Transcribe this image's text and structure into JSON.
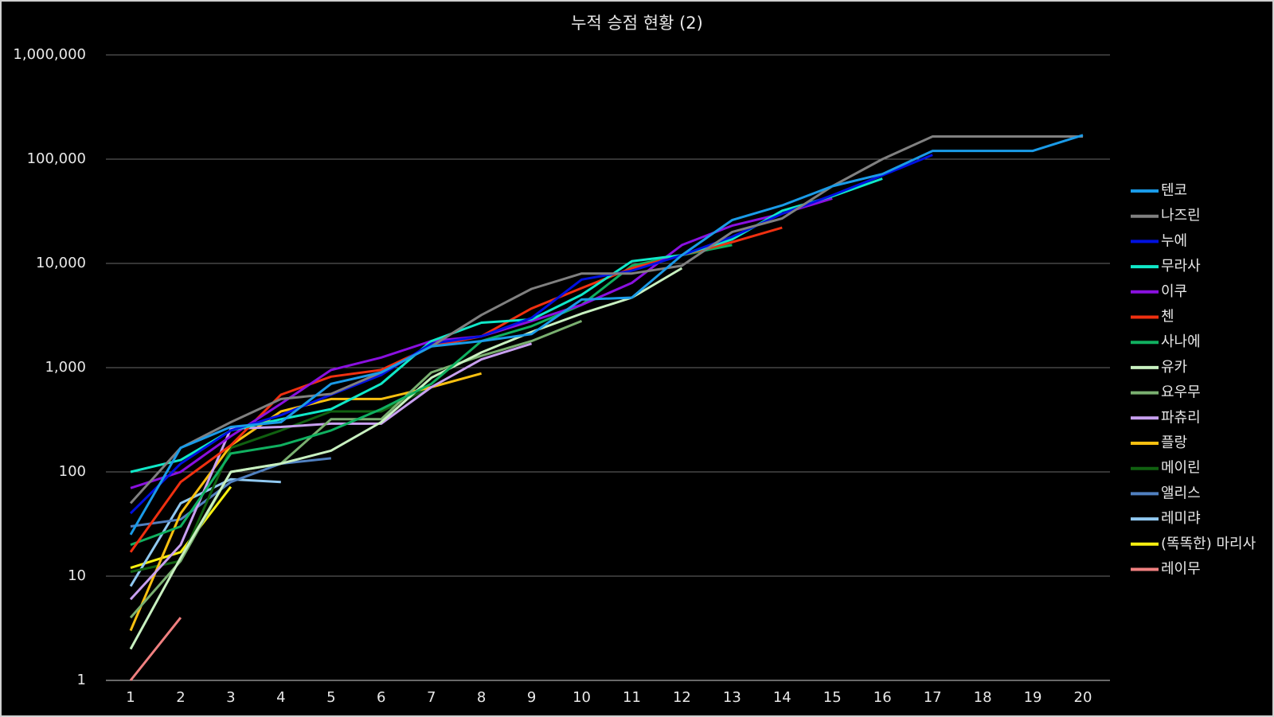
{
  "chart_data": {
    "type": "line",
    "title": "누적 승점 현황 (2)",
    "log_scale": true,
    "grid": true,
    "legend": "right",
    "categories": [
      1,
      2,
      3,
      4,
      5,
      6,
      7,
      8,
      9,
      10,
      11,
      12,
      13,
      14,
      15,
      16,
      17,
      18,
      19,
      20
    ],
    "ylim": [
      1,
      1000000
    ],
    "yticks": [
      1,
      10,
      100,
      {
        "value": 1000,
        "label": "1,000"
      },
      {
        "value": 10000,
        "label": "10,000"
      },
      {
        "value": 100000,
        "label": "100,000"
      },
      {
        "value": 1000000,
        "label": "1,000,000"
      }
    ],
    "series": [
      {
        "name": "텐코",
        "color": "#1a9be8",
        "values": [
          25,
          170,
          270,
          300,
          700,
          900,
          1600,
          1800,
          2100,
          4500,
          4700,
          12000,
          26000,
          36000,
          55000,
          72000,
          120000,
          120000,
          120000,
          170000
        ]
      },
      {
        "name": "나즈린",
        "color": "#808080",
        "values": [
          50,
          170,
          300,
          500,
          560,
          900,
          1600,
          3200,
          5700,
          8000,
          8000,
          9500,
          20000,
          27000,
          55000,
          100000,
          165000,
          165000,
          165000,
          165000
        ]
      },
      {
        "name": "누에",
        "color": "#0010e0",
        "values": [
          40,
          120,
          250,
          350,
          550,
          850,
          1700,
          2000,
          3000,
          7000,
          8500,
          12000,
          18000,
          30000,
          45000,
          70000,
          110000,
          null,
          null,
          null
        ]
      },
      {
        "name": "무라사",
        "color": "#10e8c8",
        "values": [
          100,
          130,
          250,
          320,
          400,
          700,
          1800,
          2700,
          2900,
          5000,
          10500,
          12000,
          17000,
          32000,
          44000,
          65000,
          null,
          null,
          null,
          null
        ]
      },
      {
        "name": "이쿠",
        "color": "#8a10e0",
        "values": [
          70,
          100,
          220,
          450,
          950,
          1250,
          1800,
          2000,
          2800,
          4000,
          6500,
          15000,
          23000,
          30000,
          42000,
          null,
          null,
          null,
          null,
          null
        ]
      },
      {
        "name": "첸",
        "color": "#f03010",
        "values": [
          17,
          80,
          180,
          550,
          820,
          950,
          1600,
          2000,
          3700,
          5800,
          9000,
          12000,
          16000,
          22000,
          null,
          null,
          null,
          null,
          null,
          null
        ]
      },
      {
        "name": "사나에",
        "color": "#10b060",
        "values": [
          20,
          30,
          150,
          180,
          250,
          400,
          700,
          1800,
          2500,
          4000,
          9500,
          12000,
          15000,
          null,
          null,
          null,
          null,
          null,
          null,
          null
        ]
      },
      {
        "name": "유카",
        "color": "#c8f0c0",
        "values": [
          2,
          15,
          100,
          120,
          160,
          300,
          800,
          1400,
          2200,
          3300,
          4700,
          9000,
          null,
          null,
          null,
          null,
          null,
          null,
          null,
          null
        ]
      },
      {
        "name": "요우무",
        "color": "#7ab070",
        "values": [
          4,
          14,
          100,
          120,
          320,
          320,
          900,
          1300,
          1800,
          2800,
          null,
          null,
          null,
          null,
          null,
          null,
          null,
          null,
          null,
          null
        ]
      },
      {
        "name": "파츄리",
        "color": "#c8a0f0",
        "values": [
          6,
          20,
          260,
          270,
          290,
          290,
          650,
          1200,
          1700,
          null,
          null,
          null,
          null,
          null,
          null,
          null,
          null,
          null,
          null,
          null
        ]
      },
      {
        "name": "플랑",
        "color": "#f8c010",
        "values": [
          3,
          40,
          180,
          380,
          500,
          500,
          650,
          880,
          null,
          null,
          null,
          null,
          null,
          null,
          null,
          null,
          null,
          null,
          null,
          null
        ]
      },
      {
        "name": "메이린",
        "color": "#106010",
        "values": [
          11,
          14,
          170,
          250,
          380,
          380,
          650,
          null,
          null,
          null,
          null,
          null,
          null,
          null,
          null,
          null,
          null,
          null,
          null,
          null
        ]
      },
      {
        "name": "앨리스",
        "color": "#5080c0",
        "values": [
          30,
          35,
          80,
          120,
          135,
          null,
          null,
          null,
          null,
          null,
          null,
          null,
          null,
          null,
          null,
          null,
          null,
          null,
          null,
          null
        ]
      },
      {
        "name": "레미랴",
        "color": "#90c8f0",
        "values": [
          8,
          50,
          85,
          80,
          null,
          null,
          null,
          null,
          null,
          null,
          null,
          null,
          null,
          null,
          null,
          null,
          null,
          null,
          null,
          null
        ]
      },
      {
        "name": "(똑똑한) 마리사",
        "color": "#f8f010",
        "values": [
          12,
          17,
          72,
          null,
          null,
          null,
          null,
          null,
          null,
          null,
          null,
          null,
          null,
          null,
          null,
          null,
          null,
          null,
          null,
          null
        ]
      },
      {
        "name": "레이무",
        "color": "#f08080",
        "values": [
          1,
          4,
          null,
          null,
          null,
          null,
          null,
          null,
          null,
          null,
          null,
          null,
          null,
          null,
          null,
          null,
          null,
          null,
          null,
          null
        ]
      }
    ]
  }
}
